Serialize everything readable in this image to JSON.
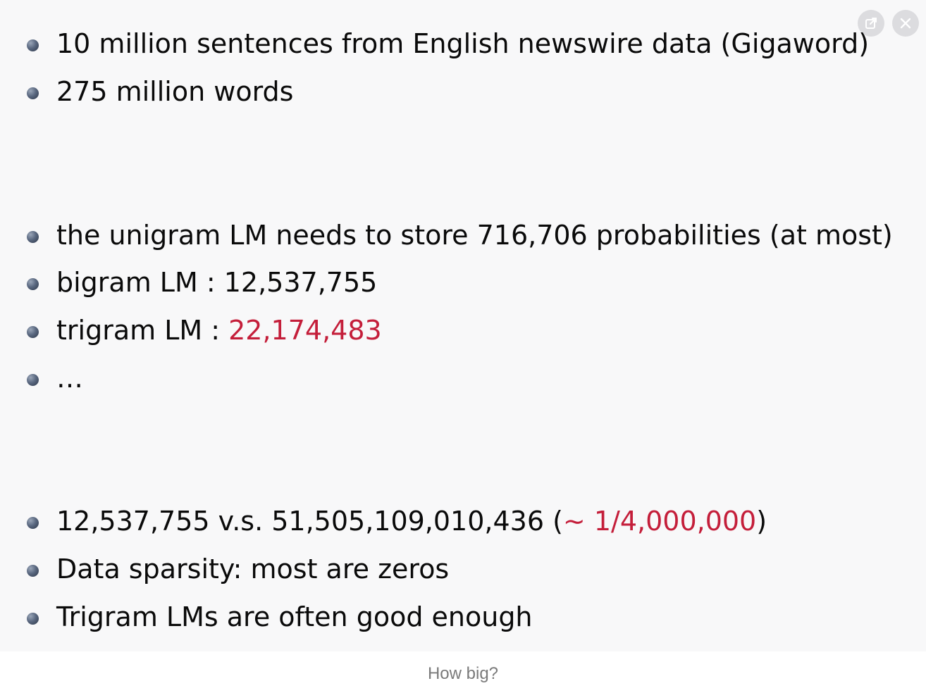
{
  "slide": {
    "bullets": [
      {
        "text": "10 million sentences from English newswire data (Gigaword)"
      },
      {
        "text": "275 million words"
      },
      {
        "text": "the unigram LM needs to store 716,706 probabilities (at most)"
      },
      {
        "prefix": "bigram LM : ",
        "value": "12,537,755"
      },
      {
        "prefix": "trigram LM : ",
        "value_highlight": "22,174,483"
      },
      {
        "text": "…"
      },
      {
        "prefix": "12,537,755 v.s. 51,505,109,010,436 (",
        "approx": "∼",
        "ratio_highlight": "1/4,000,000",
        "suffix": ")"
      },
      {
        "text": "Data sparsity: most are zeros"
      },
      {
        "text": "Trigram LMs are often good enough"
      }
    ]
  },
  "caption": "How big?",
  "controls": {
    "icons": [
      "pop-out-icon",
      "close-icon"
    ]
  },
  "colors": {
    "highlight": "#c41e3a",
    "background": "#f8f8f9",
    "text": "#0a0a0a",
    "caption": "#7a7a7a"
  }
}
